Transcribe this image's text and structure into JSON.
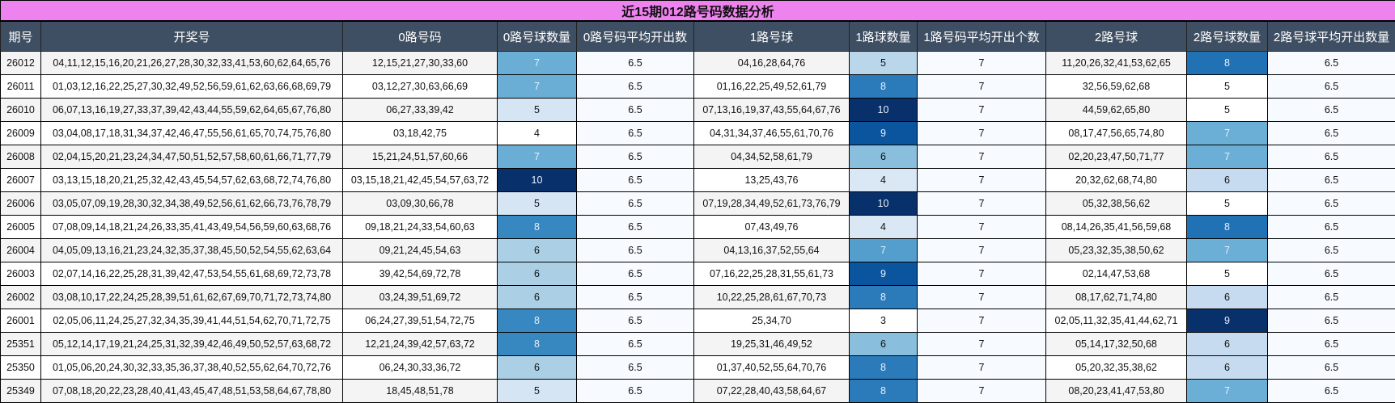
{
  "title": "近15期012路号码数据分析",
  "columns": [
    "期号",
    "开奖号",
    "0路号码",
    "0路号球数量",
    "0路号码平均开出数",
    "1路号球",
    "1路球数量",
    "1路号码平均开出个数",
    "2路号球",
    "2路号球数量",
    "2路号球平均开出数量"
  ],
  "colors": {
    "title_bg": "#ee82ee",
    "header_bg": "#3f4f63",
    "count0_scale": {
      "4": "#ffffff",
      "5": "#d5e5f4",
      "6": "#abd0e6",
      "7": "#6aaed6",
      "8": "#3787c0",
      "10": "#08306b"
    },
    "count1_scale": {
      "3": "#ffffff",
      "4": "#dae8f5",
      "5": "#bad6eb",
      "6": "#89bedc",
      "7": "#539ecd",
      "8": "#2b7bba",
      "9": "#0b559f",
      "10": "#08306b"
    },
    "count2_scale": {
      "5": "#ffffff",
      "6": "#c6dbef",
      "7": "#6baed6",
      "8": "#2171b5",
      "9": "#08306b"
    }
  },
  "rows": [
    {
      "issue": "26012",
      "draw": "04,11,12,15,16,20,21,26,27,28,30,32,33,41,53,60,62,64,65,76",
      "r0": "12,15,21,27,30,33,60",
      "c0": "7",
      "a0": "6.5",
      "r1": "04,16,28,64,76",
      "c1": "5",
      "a1": "7",
      "r2": "11,20,26,32,41,53,62,65",
      "c2": "8",
      "a2": "6.5"
    },
    {
      "issue": "26011",
      "draw": "01,03,12,16,22,25,27,30,32,49,52,56,59,61,62,63,66,68,69,79",
      "r0": "03,12,27,30,63,66,69",
      "c0": "7",
      "a0": "6.5",
      "r1": "01,16,22,25,49,52,61,79",
      "c1": "8",
      "a1": "7",
      "r2": "32,56,59,62,68",
      "c2": "5",
      "a2": "6.5"
    },
    {
      "issue": "26010",
      "draw": "06,07,13,16,19,27,33,37,39,42,43,44,55,59,62,64,65,67,76,80",
      "r0": "06,27,33,39,42",
      "c0": "5",
      "a0": "6.5",
      "r1": "07,13,16,19,37,43,55,64,67,76",
      "c1": "10",
      "a1": "7",
      "r2": "44,59,62,65,80",
      "c2": "5",
      "a2": "6.5"
    },
    {
      "issue": "26009",
      "draw": "03,04,08,17,18,31,34,37,42,46,47,55,56,61,65,70,74,75,76,80",
      "r0": "03,18,42,75",
      "c0": "4",
      "a0": "6.5",
      "r1": "04,31,34,37,46,55,61,70,76",
      "c1": "9",
      "a1": "7",
      "r2": "08,17,47,56,65,74,80",
      "c2": "7",
      "a2": "6.5"
    },
    {
      "issue": "26008",
      "draw": "02,04,15,20,21,23,24,34,47,50,51,52,57,58,60,61,66,71,77,79",
      "r0": "15,21,24,51,57,60,66",
      "c0": "7",
      "a0": "6.5",
      "r1": "04,34,52,58,61,79",
      "c1": "6",
      "a1": "7",
      "r2": "02,20,23,47,50,71,77",
      "c2": "7",
      "a2": "6.5"
    },
    {
      "issue": "26007",
      "draw": "03,13,15,18,20,21,25,32,42,43,45,54,57,62,63,68,72,74,76,80",
      "r0": "03,15,18,21,42,45,54,57,63,72",
      "c0": "10",
      "a0": "6.5",
      "r1": "13,25,43,76",
      "c1": "4",
      "a1": "7",
      "r2": "20,32,62,68,74,80",
      "c2": "6",
      "a2": "6.5"
    },
    {
      "issue": "26006",
      "draw": "03,05,07,09,19,28,30,32,34,38,49,52,56,61,62,66,73,76,78,79",
      "r0": "03,09,30,66,78",
      "c0": "5",
      "a0": "6.5",
      "r1": "07,19,28,34,49,52,61,73,76,79",
      "c1": "10",
      "a1": "7",
      "r2": "05,32,38,56,62",
      "c2": "5",
      "a2": "6.5"
    },
    {
      "issue": "26005",
      "draw": "07,08,09,14,18,21,24,26,33,35,41,43,49,54,56,59,60,63,68,76",
      "r0": "09,18,21,24,33,54,60,63",
      "c0": "8",
      "a0": "6.5",
      "r1": "07,43,49,76",
      "c1": "4",
      "a1": "7",
      "r2": "08,14,26,35,41,56,59,68",
      "c2": "8",
      "a2": "6.5"
    },
    {
      "issue": "26004",
      "draw": "04,05,09,13,16,21,23,24,32,35,37,38,45,50,52,54,55,62,63,64",
      "r0": "09,21,24,45,54,63",
      "c0": "6",
      "a0": "6.5",
      "r1": "04,13,16,37,52,55,64",
      "c1": "7",
      "a1": "7",
      "r2": "05,23,32,35,38,50,62",
      "c2": "7",
      "a2": "6.5"
    },
    {
      "issue": "26003",
      "draw": "02,07,14,16,22,25,28,31,39,42,47,53,54,55,61,68,69,72,73,78",
      "r0": "39,42,54,69,72,78",
      "c0": "6",
      "a0": "6.5",
      "r1": "07,16,22,25,28,31,55,61,73",
      "c1": "9",
      "a1": "7",
      "r2": "02,14,47,53,68",
      "c2": "5",
      "a2": "6.5"
    },
    {
      "issue": "26002",
      "draw": "03,08,10,17,22,24,25,28,39,51,61,62,67,69,70,71,72,73,74,80",
      "r0": "03,24,39,51,69,72",
      "c0": "6",
      "a0": "6.5",
      "r1": "10,22,25,28,61,67,70,73",
      "c1": "8",
      "a1": "7",
      "r2": "08,17,62,71,74,80",
      "c2": "6",
      "a2": "6.5"
    },
    {
      "issue": "26001",
      "draw": "02,05,06,11,24,25,27,32,34,35,39,41,44,51,54,62,70,71,72,75",
      "r0": "06,24,27,39,51,54,72,75",
      "c0": "8",
      "a0": "6.5",
      "r1": "25,34,70",
      "c1": "3",
      "a1": "7",
      "r2": "02,05,11,32,35,41,44,62,71",
      "c2": "9",
      "a2": "6.5"
    },
    {
      "issue": "25351",
      "draw": "05,12,14,17,19,21,24,25,31,32,39,42,46,49,50,52,57,63,68,72",
      "r0": "12,21,24,39,42,57,63,72",
      "c0": "8",
      "a0": "6.5",
      "r1": "19,25,31,46,49,52",
      "c1": "6",
      "a1": "7",
      "r2": "05,14,17,32,50,68",
      "c2": "6",
      "a2": "6.5"
    },
    {
      "issue": "25350",
      "draw": "01,05,06,20,24,30,32,33,35,36,37,38,40,52,55,62,64,70,72,76",
      "r0": "06,24,30,33,36,72",
      "c0": "6",
      "a0": "6.5",
      "r1": "01,37,40,52,55,64,70,76",
      "c1": "8",
      "a1": "7",
      "r2": "05,20,32,35,38,62",
      "c2": "6",
      "a2": "6.5"
    },
    {
      "issue": "25349",
      "draw": "07,08,18,20,22,23,28,40,41,43,45,47,48,51,53,58,64,67,78,80",
      "r0": "18,45,48,51,78",
      "c0": "5",
      "a0": "6.5",
      "r1": "07,22,28,40,43,58,64,67",
      "c1": "8",
      "a1": "7",
      "r2": "08,20,23,41,47,53,80",
      "c2": "7",
      "a2": "6.5"
    }
  ]
}
